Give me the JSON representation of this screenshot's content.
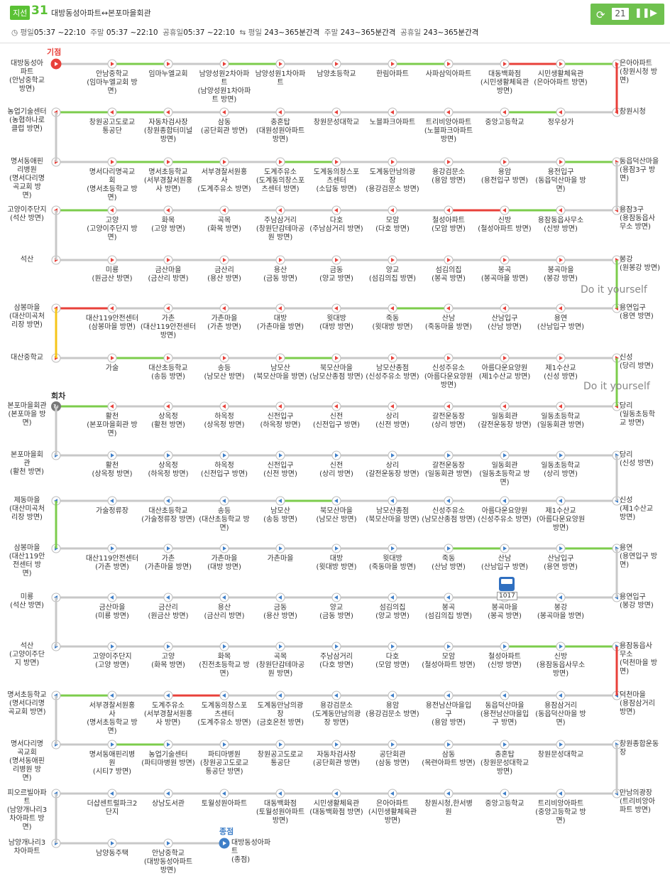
{
  "header": {
    "badge": "지선",
    "route_no": "31",
    "route_name": "대방동성아파트↔본포마을회관",
    "times": {
      "weekday_label": "평일",
      "weekday": "05:37 ~22:10",
      "weekend_label": "주말",
      "weekend": "05:37 ~22:10",
      "holiday_label": "공휴일",
      "holiday": "05:37 ~22:10",
      "int_weekday_label": "평일",
      "int_weekday": "243~365분간격",
      "int_weekend_label": "주말",
      "int_weekend": "243~365분간격",
      "int_holiday_label": "공휴일",
      "int_holiday": "243~365분간격"
    },
    "refresh_count": "21"
  },
  "colors": {
    "green": "#7ccc4c",
    "red": "#e8403a",
    "yellow": "#f5c518",
    "gray": "#c8c8c8",
    "node_red": "#e8403a",
    "node_blue": "#3f7fc8"
  },
  "labels": {
    "start": "기점",
    "end": "종점",
    "turn": "회차",
    "diy1": "Do it yourself",
    "diy2": "Do it yourself",
    "bus_no": "1017"
  },
  "rows": [
    {
      "dir": "r",
      "left": "대방동성아\n파트\n(안남중학교\n방면)",
      "right": "은아아파트\n(창원시청 방\n면)",
      "segs": [
        "gray",
        "green",
        "gray",
        "green",
        "gray",
        "gray",
        "green",
        "gray",
        "red",
        "green"
      ],
      "stops": [
        "안남중학교\n(임마누엘교회 방\n면)",
        "임마누엘교회",
        "남양성원2차아파\n트\n(남양성원1차아파\n트 방면)",
        "남양성원1차아파\n트",
        "남양초등학교",
        "한림아파트",
        "사파삼익아파트",
        "대동백화점\n(시민생활체육관\n방면)",
        "시민생활체육관\n(은아아파트 방면)"
      ]
    },
    {
      "dir": "l",
      "left": "농업기술센터\n(농협하나로\n클럽 방면)",
      "right": "창원시청",
      "segs": [
        "green",
        "green",
        "gray",
        "gray",
        "gray",
        "gray",
        "gray",
        "gray",
        "green",
        "gray"
      ],
      "stops": [
        "창원공고도로교\n통공단",
        "자동차검사장\n(창원종합터미널\n방면)",
        "삼동\n(공단회관 방면)",
        "충혼탑\n(대원성원아파트\n방면)",
        "창원문성대학교",
        "노블파크아파트",
        "트리비앙아파트\n(노블파크아파트\n방면)",
        "중앙고등학교",
        "정우상가"
      ]
    },
    {
      "dir": "r",
      "left": "명서동애핀\n리병원\n(명서다리명\n곡교회 방\n면)",
      "right": "동읍덕산마을\n(용잠3구 방\n면)",
      "segs": [
        "gray",
        "green",
        "green",
        "gray",
        "green",
        "gray",
        "gray",
        "gray",
        "gray",
        "green"
      ],
      "stops": [
        "명서다리명곡교\n회\n(명서초등학교 방\n면)",
        "명서초등학교\n(서부경찰서원홍\n사 방면)",
        "서부경찰서원홍\n사\n(도계주유소 방면)",
        "도계주유소\n(도계동의창스포\n츠센터 방면)",
        "도계동의창스포\n츠센터\n(소답동 방면)",
        "도계동만남의광\n장\n(용강검문소 방면)",
        "용강검문소\n(용암 방면)",
        "용암\n(용전입구 방면)",
        "용전입구\n(동읍덕산마을 방\n면)"
      ]
    },
    {
      "dir": "l",
      "left": "고양이주단지\n(석산 방면)",
      "right": "용잠3구\n(용잠동읍사\n무소 방면)",
      "segs": [
        "green",
        "gray",
        "gray",
        "gray",
        "gray",
        "gray",
        "gray",
        "red",
        "green",
        "gray"
      ],
      "stops": [
        "고양\n(고양이주단지 방\n면)",
        "화목\n(고양 방면)",
        "곡목\n(화목 방면)",
        "주남삼거리\n(창원단감테마공\n원 방면)",
        "다호\n(주남삼거리 방면)",
        "모암\n(다호 방면)",
        "철성아파트\n(모암 방면)",
        "신방\n(철성아파트 방면)",
        "용잠동읍사무소\n(신방 방면)"
      ]
    },
    {
      "dir": "r",
      "left": "석산",
      "right": "봉강\n(원봉강 방면)",
      "segs": [
        "gray",
        "gray",
        "gray",
        "gray",
        "gray",
        "gray",
        "gray",
        "gray",
        "gray",
        "gray"
      ],
      "stops": [
        "미룡\n(원금산 방면)",
        "금산마을\n(금산리 방면)",
        "금산리\n(용산 방면)",
        "용산\n(금동 방면)",
        "금동\n(양교 방면)",
        "양교\n(섬김의집 방면)",
        "섬김의집\n(봉곡 방면)",
        "봉곡\n(봉곡마을 방면)",
        "봉곡마을\n(봉강 방면)"
      ]
    },
    {
      "dir": "l",
      "left": "삼봉마을\n(대산미곡처\n리장 방면)",
      "right": "용연입구\n(용연 방면)",
      "segs": [
        "red",
        "gray",
        "gray",
        "gray",
        "gray",
        "gray",
        "green",
        "gray",
        "gray",
        "gray"
      ],
      "stops": [
        "대산119안전센터\n(삼봉마을 방면)",
        "가촌\n(대산119안전센터\n방면)",
        "가촌마을\n(가촌 방면)",
        "대방\n(가촌마을 방면)",
        "윗대방\n(대방 방면)",
        "죽동\n(윗대방 방면)",
        "산남\n(죽동마을 방면)",
        "산남입구\n(산남 방면)",
        "용연\n(산남입구 방면)"
      ]
    },
    {
      "dir": "r",
      "left": "대산중학교",
      "right": "신성\n(당리 방면)",
      "segs": [
        "gray",
        "green",
        "gray",
        "gray",
        "green",
        "gray",
        "gray",
        "gray",
        "gray",
        "gray"
      ],
      "stops": [
        "가술",
        "대산초등학교\n(송등 방면)",
        "송등\n(남모산 방면)",
        "남모산\n(북모산마을 방면)",
        "북모산마을\n(남모산종점 방면)",
        "남모산종점\n(신성주유소 방면)",
        "신성주유소\n(아름다운요양원\n방면)",
        "아름다운요양원\n(제1수산교 방면)",
        "제1수산교\n(신성 방면)"
      ]
    },
    {
      "dir": "l",
      "left": "본포마을회관\n(본포마을 방\n면)",
      "right": "당리\n(일동초등학\n교 방면)",
      "segs": [
        "green",
        "gray",
        "gray",
        "gray",
        "gray",
        "gray",
        "gray",
        "gray",
        "gray",
        "gray"
      ],
      "stops": [
        "활천\n(본포마을회관 방\n면)",
        "상옥정\n(활천 방면)",
        "하옥정\n(상옥정 방면)",
        "신전입구\n(하옥정 방면)",
        "신전\n(신전입구 방면)",
        "상리\n(신전 방면)",
        "갈전운동장\n(상리 방면)",
        "일동회관\n(갈전운동장 방면)",
        "일동초등학교\n(일동회관 방면)"
      ]
    },
    {
      "dir": "r",
      "left": "본포마을회\n관\n(활천 방면)",
      "right": "당리\n(신성 방면)",
      "segs": [
        "gray",
        "gray",
        "gray",
        "gray",
        "gray",
        "gray",
        "gray",
        "gray",
        "gray",
        "gray"
      ],
      "stops": [
        "활천\n(상옥정 방면)",
        "상옥정\n(하옥정 방면)",
        "하옥정\n(신전입구 방면)",
        "신전입구\n(신전 방면)",
        "신전\n(상리 방면)",
        "상리\n(갈전운동장 방면)",
        "갈전운동장\n(일동회관 방면)",
        "일동회관\n(일동초등학교 방\n면)",
        "일동초등학교\n(상리 방면)"
      ]
    },
    {
      "dir": "l",
      "left": "제동마을\n(대산미곡처\n리장 방면)",
      "right": "신성\n(제1수산교\n방면)",
      "segs": [
        "gray",
        "gray",
        "gray",
        "gray",
        "green",
        "gray",
        "gray",
        "gray",
        "gray",
        "gray"
      ],
      "stops": [
        "가술정류장",
        "대산초등학교\n(가술정류장 방면)",
        "송등\n(대산초등학교 방\n면)",
        "남모산\n(송등 방면)",
        "북모산마을\n(남모산 방면)",
        "남모산종점\n(북모산마을 방면)",
        "신성주유소\n(남모산종점 방면)",
        "아름다운요양원\n(신성주유소 방면)",
        "제1수산교\n(아름다운요양원\n방면)"
      ]
    },
    {
      "dir": "r",
      "left": "삼봉마을\n(대산119안\n전센터 방\n면)",
      "right": "용연\n(용연입구 방\n면)",
      "segs": [
        "gray",
        "gray",
        "gray",
        "gray",
        "gray",
        "gray",
        "gray",
        "green",
        "gray",
        "green"
      ],
      "stops": [
        "대산119안전센터\n(가촌 방면)",
        "가촌\n(가촌마을 방면)",
        "가촌마을\n(대방 방면)",
        "가촌마을",
        "대방\n(윗대방 방면)",
        "윗대방\n(죽동마을 방면)",
        "죽동\n(산남 방면)",
        "산남\n(산남입구 방면)",
        "산남입구\n(용연 방면)"
      ]
    },
    {
      "dir": "l",
      "left": "미룡\n(석산 방면)",
      "right": "용연입구\n(봉강 방면)",
      "segs": [
        "gray",
        "gray",
        "gray",
        "gray",
        "gray",
        "gray",
        "gray",
        "gray",
        "gray",
        "gray"
      ],
      "stops": [
        "금산마을\n(미룡 방면)",
        "금산리\n(원금산 방면)",
        "용산\n(금산리 방면)",
        "금동\n(용산 방면)",
        "양교\n(금동 방면)",
        "섬김의집\n(양교 방면)",
        "봉곡\n(섬김의집 방면)",
        "봉곡마을\n(봉곡 방면)",
        "봉강\n(봉곡마을 방면)"
      ]
    },
    {
      "dir": "r",
      "left": "석산\n(고양이주단\n지 방면)",
      "right": "용잠동읍사\n무소\n(덕천마을 방\n면)",
      "segs": [
        "gray",
        "gray",
        "gray",
        "gray",
        "gray",
        "gray",
        "gray",
        "gray",
        "green",
        "green"
      ],
      "stops": [
        "고양이주단지\n(고양 방면)",
        "고양\n(화목 방면)",
        "화목\n(진전초등학교 방\n면)",
        "곡목\n(창원단감테마공\n원 방면)",
        "주남삼거리\n(다호 방면)",
        "다호\n(모암 방면)",
        "모암\n(철성아파트 방면)",
        "철성아파트\n(신방 방면)",
        "신방\n(용잠동읍사무소\n방면)"
      ]
    },
    {
      "dir": "l",
      "left": "명서초등학교\n(명서다리명\n곡교회 방면)",
      "right": "덕천마을\n(용잠삼거리\n방면)",
      "segs": [
        "green",
        "gray",
        "red",
        "gray",
        "gray",
        "gray",
        "gray",
        "gray",
        "gray",
        "gray"
      ],
      "stops": [
        "서부경찰서원홍\n사\n(명서초등학교 방\n면)",
        "도계주유소\n(서부경찰서원홍\n사 방면)",
        "도계동의창스포\n츠센터\n(도계주유소 방면)",
        "도계동만남의광\n장\n(금호온천 방면)",
        "용강검문소\n(도계동만남의광\n장 방면)",
        "용암\n(용강검문소 방면)",
        "용전남산마을입\n구\n(용암 방면)",
        "동읍덕산마을\n(용전남산마을입\n구 방면)",
        "용잠삼거리\n(동읍덕산마을 방\n면)"
      ]
    },
    {
      "dir": "r",
      "left": "명서다리명\n곡교회\n(명서동애핀\n리병원 방\n면)",
      "right": "창원종합운동\n장",
      "segs": [
        "gray",
        "green",
        "gray",
        "gray",
        "gray",
        "gray",
        "gray",
        "gray",
        "gray",
        "gray"
      ],
      "stops": [
        "명서동애핀리병\n원\n(시티7 방면)",
        "농업기술센터\n(파티마병원 방면)",
        "파티마병원\n(창원공고도로교\n통공단 방면)",
        "창원공고도로교\n통공단",
        "자동차검사장\n(공단회관 방면)",
        "공단회관\n(삼동 방면)",
        "삼동\n(목련아파트 방면)",
        "충혼탑\n(창원문성대학교\n방면)",
        "창원문성대학교"
      ]
    },
    {
      "dir": "l",
      "left": "피오르빌아파\n트\n(남양개나리3\n차아파트 방\n면)",
      "right": "만남의광장\n(트리비앙아\n파트 방면)",
      "segs": [
        "gray",
        "gray",
        "gray",
        "gray",
        "gray",
        "gray",
        "gray",
        "gray",
        "gray",
        "gray"
      ],
      "stops": [
        "더샵센트럴파크2\n단지",
        "상남도서관",
        "토월성원아파트",
        "대동백화점\n(토월성원아파트\n방면)",
        "시민생활체육관\n(대동백화점 방면)",
        "은아아파트\n(시민생활체육관\n방면)",
        "창원시청,한서병\n원",
        "중앙고등학교",
        "트리비앙아파트\n(중앙고등학교 방\n면)"
      ]
    },
    {
      "dir": "r",
      "left": "남양개나리3\n차아파트",
      "right": "",
      "segs": [
        "gray",
        "gray",
        "gray"
      ],
      "stops": [
        "남양동주택",
        "안남중학교\n(대방동성아파트\n방면)"
      ],
      "end": "대방동성아파\n트\n(종점)"
    }
  ]
}
